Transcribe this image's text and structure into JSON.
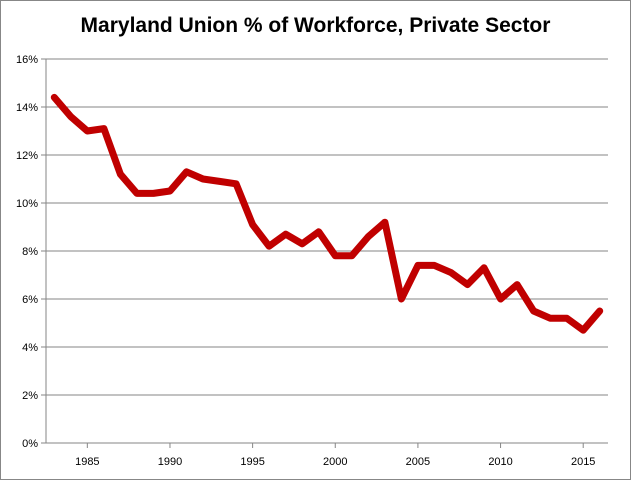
{
  "chart_data": {
    "type": "line",
    "title": "Maryland Union % of Workforce, Private Sector",
    "xlabel": "",
    "ylabel": "",
    "xlim": [
      1982.5,
      2016.5
    ],
    "ylim": [
      0,
      16
    ],
    "yticks": [
      "0%",
      "2%",
      "4%",
      "6%",
      "8%",
      "10%",
      "12%",
      "14%",
      "16%"
    ],
    "xticks": [
      "1985",
      "1990",
      "1995",
      "2000",
      "2005",
      "2010",
      "2015"
    ],
    "grid": true,
    "legend": "none",
    "series": [
      {
        "color": "#c00000",
        "x": [
          1983,
          1984,
          1985,
          1986,
          1987,
          1988,
          1989,
          1990,
          1991,
          1992,
          1993,
          1994,
          1995,
          1996,
          1997,
          1998,
          1999,
          2000,
          2001,
          2002,
          2003,
          2004,
          2005,
          2006,
          2007,
          2008,
          2009,
          2010,
          2011,
          2012,
          2013,
          2014,
          2015,
          2016
        ],
        "values": [
          14.4,
          13.6,
          13.0,
          13.1,
          11.2,
          10.4,
          10.4,
          10.5,
          11.3,
          11.0,
          10.9,
          10.8,
          9.1,
          8.2,
          8.7,
          8.3,
          8.8,
          7.8,
          7.8,
          8.6,
          9.2,
          6.0,
          7.4,
          7.4,
          7.1,
          6.6,
          7.3,
          6.0,
          6.6,
          5.5,
          5.2,
          5.2,
          4.7,
          5.5
        ]
      }
    ]
  }
}
